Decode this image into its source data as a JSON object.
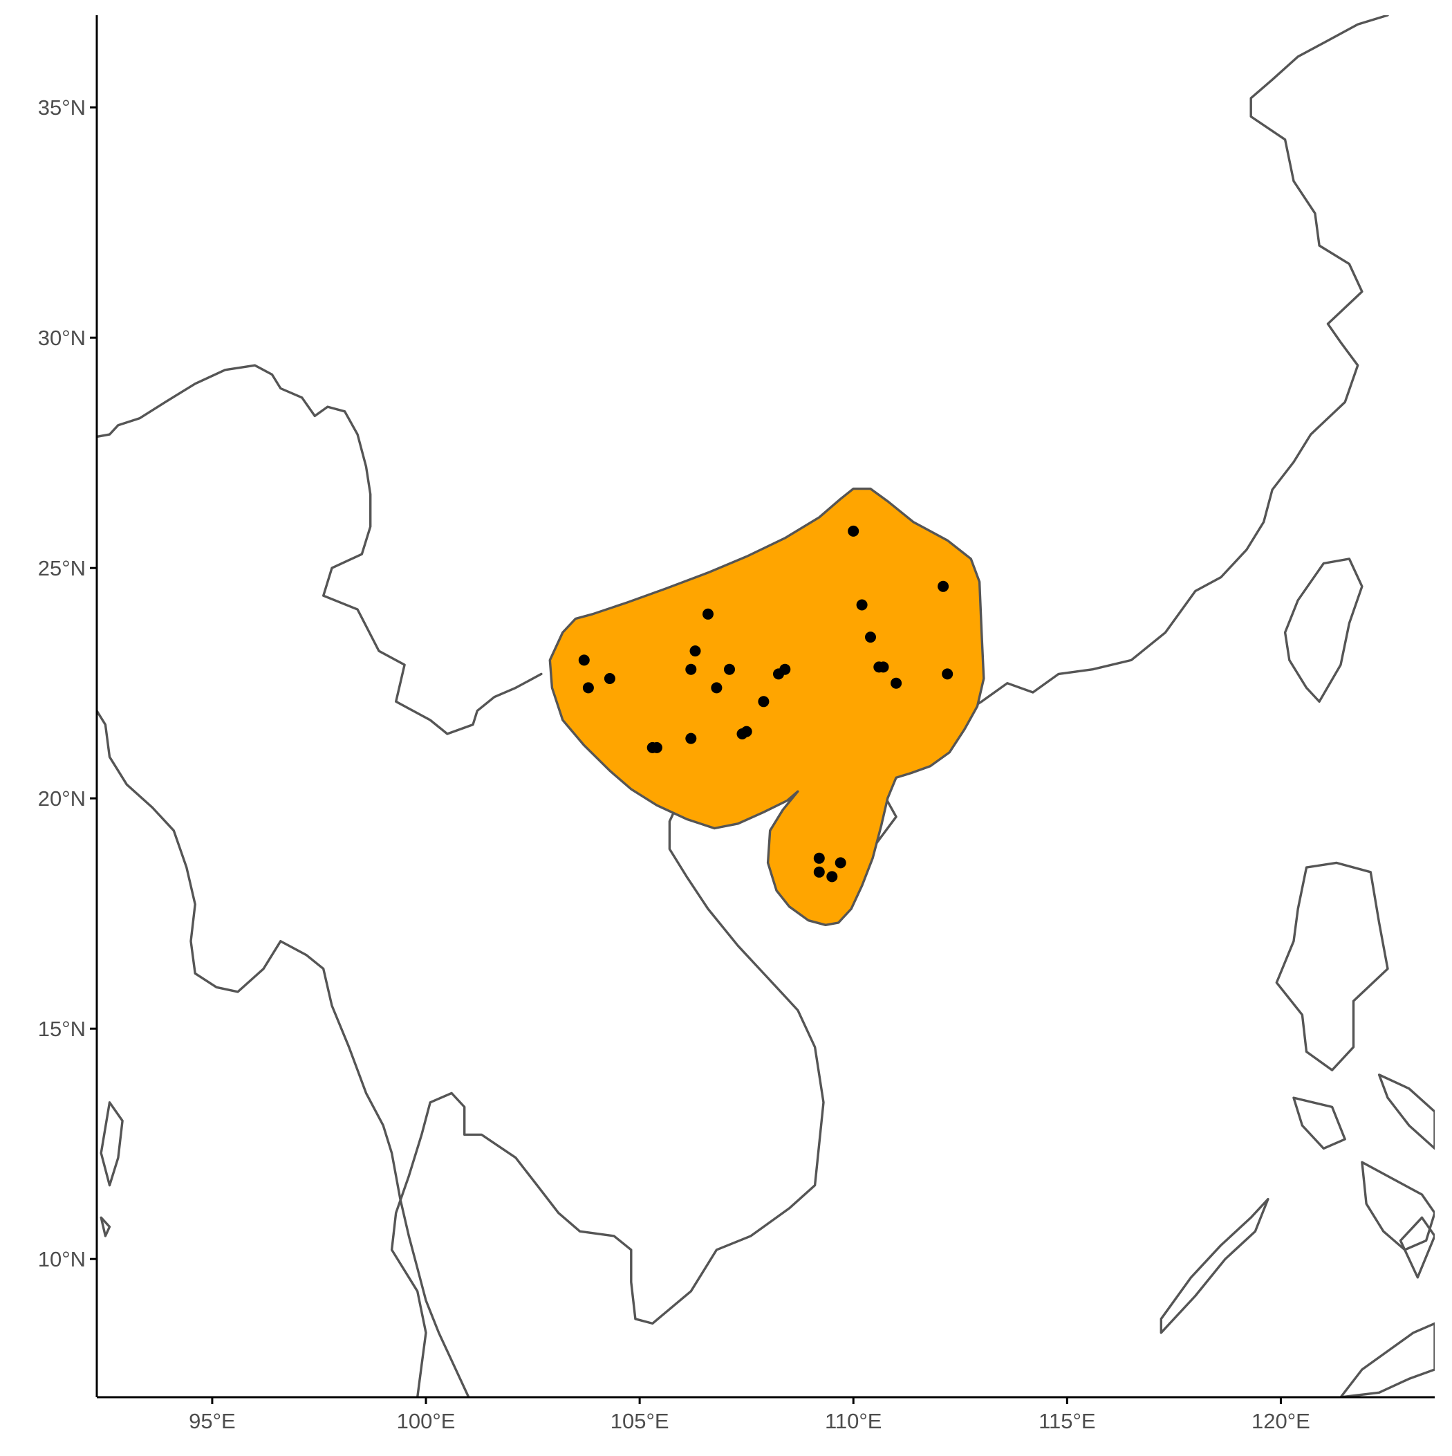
{
  "map": {
    "projection": "equirectangular",
    "lon_range": [
      92.3,
      123.6
    ],
    "lat_range": [
      7.0,
      37.0
    ],
    "x_ticks": [
      {
        "value": 95,
        "label": "95°E"
      },
      {
        "value": 100,
        "label": "100°E"
      },
      {
        "value": 105,
        "label": "105°E"
      },
      {
        "value": 110,
        "label": "110°E"
      },
      {
        "value": 115,
        "label": "115°E"
      },
      {
        "value": 120,
        "label": "120°E"
      }
    ],
    "y_ticks": [
      {
        "value": 10,
        "label": "10°N"
      },
      {
        "value": 15,
        "label": "15°N"
      },
      {
        "value": 20,
        "label": "20°N"
      },
      {
        "value": 25,
        "label": "25°N"
      },
      {
        "value": 30,
        "label": "30°N"
      },
      {
        "value": 35,
        "label": "35°N"
      }
    ],
    "colors": {
      "range_fill": "#FFA500",
      "range_stroke": "#555555",
      "coastline": "#555555",
      "points": "#000000",
      "axis": "#000000",
      "tick_label": "#4d4d4d"
    },
    "range_polygon": [
      [
        103.9,
        24.0
      ],
      [
        104.7,
        24.25
      ],
      [
        105.6,
        24.55
      ],
      [
        106.6,
        24.9
      ],
      [
        107.5,
        25.25
      ],
      [
        108.4,
        25.65
      ],
      [
        109.2,
        26.1
      ],
      [
        109.7,
        26.5
      ],
      [
        110.0,
        26.72
      ],
      [
        110.4,
        26.72
      ],
      [
        110.8,
        26.45
      ],
      [
        111.4,
        26.0
      ],
      [
        112.2,
        25.6
      ],
      [
        112.75,
        25.2
      ],
      [
        112.95,
        24.7
      ],
      [
        113.0,
        23.6
      ],
      [
        113.05,
        22.6
      ],
      [
        112.9,
        22.0
      ],
      [
        112.6,
        21.5
      ],
      [
        112.25,
        21.0
      ],
      [
        111.8,
        20.7
      ],
      [
        111.35,
        20.55
      ],
      [
        111.0,
        20.45
      ],
      [
        110.8,
        20.0
      ],
      [
        110.65,
        19.4
      ],
      [
        110.45,
        18.7
      ],
      [
        110.2,
        18.1
      ],
      [
        109.95,
        17.6
      ],
      [
        109.65,
        17.3
      ],
      [
        109.35,
        17.25
      ],
      [
        108.95,
        17.35
      ],
      [
        108.5,
        17.65
      ],
      [
        108.2,
        18.0
      ],
      [
        108.0,
        18.6
      ],
      [
        108.05,
        19.3
      ],
      [
        108.35,
        19.75
      ],
      [
        108.7,
        20.15
      ],
      [
        108.45,
        19.95
      ],
      [
        107.9,
        19.7
      ],
      [
        107.3,
        19.45
      ],
      [
        106.75,
        19.35
      ],
      [
        106.1,
        19.55
      ],
      [
        105.4,
        19.85
      ],
      [
        104.8,
        20.2
      ],
      [
        104.3,
        20.6
      ],
      [
        103.7,
        21.15
      ],
      [
        103.2,
        21.7
      ],
      [
        102.95,
        22.4
      ],
      [
        102.9,
        23.0
      ],
      [
        103.2,
        23.6
      ],
      [
        103.5,
        23.9
      ]
    ],
    "occurrence_points": [
      [
        110.0,
        25.8
      ],
      [
        112.1,
        24.6
      ],
      [
        110.2,
        24.2
      ],
      [
        106.6,
        24.0
      ],
      [
        110.4,
        23.5
      ],
      [
        103.7,
        23.0
      ],
      [
        106.3,
        23.2
      ],
      [
        107.1,
        22.8
      ],
      [
        106.2,
        22.8
      ],
      [
        108.4,
        22.8
      ],
      [
        108.25,
        22.7
      ],
      [
        110.6,
        22.85
      ],
      [
        110.7,
        22.85
      ],
      [
        112.2,
        22.7
      ],
      [
        104.3,
        22.6
      ],
      [
        103.8,
        22.4
      ],
      [
        106.8,
        22.4
      ],
      [
        111.0,
        22.5
      ],
      [
        107.9,
        22.1
      ],
      [
        107.4,
        21.4
      ],
      [
        107.5,
        21.45
      ],
      [
        106.2,
        21.3
      ],
      [
        105.3,
        21.1
      ],
      [
        105.4,
        21.1
      ],
      [
        109.2,
        18.7
      ],
      [
        109.7,
        18.6
      ],
      [
        109.2,
        18.4
      ],
      [
        109.5,
        18.3
      ]
    ],
    "coastlines": [
      [
        [
          92.3,
          27.85
        ],
        [
          92.6,
          27.9
        ],
        [
          92.8,
          28.1
        ],
        [
          93.3,
          28.25
        ],
        [
          93.9,
          28.6
        ],
        [
          94.6,
          29.0
        ],
        [
          95.3,
          29.3
        ],
        [
          96.0,
          29.4
        ],
        [
          96.4,
          29.2
        ],
        [
          96.6,
          28.9
        ],
        [
          97.1,
          28.7
        ],
        [
          97.4,
          28.3
        ],
        [
          97.7,
          28.5
        ],
        [
          98.1,
          28.4
        ],
        [
          98.4,
          27.9
        ],
        [
          98.6,
          27.2
        ],
        [
          98.7,
          26.6
        ],
        [
          98.7,
          25.9
        ],
        [
          98.5,
          25.3
        ],
        [
          97.8,
          25.0
        ],
        [
          97.6,
          24.4
        ],
        [
          98.4,
          24.1
        ],
        [
          98.9,
          23.2
        ],
        [
          99.5,
          22.9
        ],
        [
          99.3,
          22.1
        ],
        [
          100.1,
          21.7
        ],
        [
          100.5,
          21.4
        ],
        [
          101.1,
          21.6
        ],
        [
          101.2,
          21.9
        ],
        [
          101.6,
          22.2
        ],
        [
          102.1,
          22.4
        ],
        [
          102.7,
          22.7
        ]
      ],
      [
        [
          92.3,
          21.9
        ],
        [
          92.5,
          21.6
        ],
        [
          92.6,
          20.9
        ],
        [
          93.0,
          20.3
        ],
        [
          93.6,
          19.8
        ],
        [
          94.1,
          19.3
        ],
        [
          94.4,
          18.5
        ],
        [
          94.6,
          17.7
        ],
        [
          94.5,
          16.9
        ],
        [
          94.6,
          16.2
        ],
        [
          95.1,
          15.9
        ],
        [
          95.6,
          15.8
        ],
        [
          96.2,
          16.3
        ],
        [
          96.6,
          16.9
        ],
        [
          97.2,
          16.6
        ],
        [
          97.6,
          16.3
        ],
        [
          97.8,
          15.5
        ],
        [
          98.2,
          14.6
        ],
        [
          98.6,
          13.6
        ],
        [
          99.0,
          12.9
        ],
        [
          99.2,
          12.3
        ],
        [
          99.4,
          11.3
        ],
        [
          99.6,
          10.5
        ],
        [
          99.8,
          9.8
        ],
        [
          100.0,
          9.1
        ],
        [
          100.3,
          8.4
        ],
        [
          100.6,
          7.8
        ],
        [
          101.0,
          7.0
        ]
      ],
      [
        [
          99.8,
          7.0
        ],
        [
          99.9,
          7.7
        ],
        [
          100.0,
          8.4
        ],
        [
          99.8,
          9.3
        ],
        [
          99.2,
          10.2
        ],
        [
          99.3,
          11.0
        ],
        [
          99.6,
          11.8
        ],
        [
          99.9,
          12.7
        ],
        [
          100.1,
          13.4
        ],
        [
          100.6,
          13.6
        ],
        [
          100.9,
          13.3
        ],
        [
          100.9,
          12.7
        ],
        [
          101.3,
          12.7
        ],
        [
          102.1,
          12.2
        ],
        [
          102.6,
          11.6
        ],
        [
          103.1,
          11.0
        ],
        [
          103.6,
          10.6
        ],
        [
          104.4,
          10.5
        ],
        [
          104.8,
          10.2
        ],
        [
          104.8,
          9.5
        ],
        [
          104.9,
          8.7
        ],
        [
          105.3,
          8.6
        ],
        [
          106.2,
          9.3
        ],
        [
          106.8,
          10.2
        ],
        [
          107.6,
          10.5
        ],
        [
          108.5,
          11.1
        ],
        [
          109.1,
          11.6
        ],
        [
          109.2,
          12.5
        ],
        [
          109.3,
          13.4
        ],
        [
          109.1,
          14.6
        ],
        [
          108.7,
          15.4
        ],
        [
          108.0,
          16.1
        ],
        [
          107.3,
          16.8
        ],
        [
          106.6,
          17.6
        ],
        [
          106.1,
          18.3
        ],
        [
          105.7,
          18.9
        ],
        [
          105.7,
          19.5
        ],
        [
          106.0,
          20.1
        ],
        [
          106.6,
          20.7
        ],
        [
          107.2,
          21.1
        ],
        [
          107.8,
          21.5
        ],
        [
          108.3,
          21.6
        ],
        [
          108.7,
          21.7
        ],
        [
          109.1,
          21.5
        ],
        [
          109.6,
          21.5
        ],
        [
          110.1,
          21.3
        ],
        [
          110.4,
          20.8
        ],
        [
          110.3,
          20.3
        ]
      ],
      [
        [
          110.3,
          20.3
        ],
        [
          110.7,
          20.1
        ],
        [
          111.0,
          19.6
        ],
        [
          110.6,
          19.1
        ],
        [
          110.2,
          18.6
        ],
        [
          109.6,
          18.2
        ],
        [
          108.9,
          18.4
        ],
        [
          108.6,
          18.8
        ],
        [
          108.7,
          19.4
        ],
        [
          109.2,
          19.8
        ],
        [
          109.7,
          20.0
        ],
        [
          110.3,
          20.3
        ]
      ],
      [
        [
          110.4,
          20.8
        ],
        [
          110.8,
          21.2
        ],
        [
          111.5,
          21.5
        ],
        [
          112.3,
          21.7
        ],
        [
          113.0,
          22.1
        ],
        [
          113.6,
          22.5
        ],
        [
          114.2,
          22.3
        ],
        [
          114.8,
          22.7
        ],
        [
          115.6,
          22.8
        ],
        [
          116.5,
          23.0
        ],
        [
          117.3,
          23.6
        ],
        [
          118.0,
          24.5
        ],
        [
          118.6,
          24.8
        ],
        [
          119.2,
          25.4
        ],
        [
          119.6,
          26.0
        ],
        [
          119.8,
          26.7
        ],
        [
          120.3,
          27.3
        ],
        [
          120.7,
          27.9
        ],
        [
          121.5,
          28.6
        ],
        [
          121.8,
          29.4
        ],
        [
          121.4,
          29.9
        ],
        [
          121.1,
          30.3
        ],
        [
          121.9,
          31.0
        ],
        [
          121.6,
          31.6
        ],
        [
          120.9,
          32.0
        ],
        [
          120.8,
          32.7
        ],
        [
          120.3,
          33.4
        ],
        [
          120.1,
          34.3
        ],
        [
          119.3,
          34.8
        ],
        [
          119.3,
          35.2
        ],
        [
          119.8,
          35.6
        ],
        [
          120.4,
          36.1
        ],
        [
          121.0,
          36.4
        ],
        [
          121.8,
          36.8
        ],
        [
          122.5,
          37.0
        ]
      ],
      [
        [
          121.0,
          25.1
        ],
        [
          121.6,
          25.2
        ],
        [
          121.9,
          24.6
        ],
        [
          121.6,
          23.8
        ],
        [
          121.4,
          22.9
        ],
        [
          120.9,
          22.1
        ],
        [
          120.6,
          22.4
        ],
        [
          120.2,
          23.0
        ],
        [
          120.1,
          23.6
        ],
        [
          120.4,
          24.3
        ],
        [
          121.0,
          25.1
        ]
      ],
      [
        [
          120.6,
          18.5
        ],
        [
          121.3,
          18.6
        ],
        [
          122.1,
          18.4
        ],
        [
          122.3,
          17.3
        ],
        [
          122.5,
          16.3
        ],
        [
          121.7,
          15.6
        ],
        [
          121.7,
          14.6
        ],
        [
          121.2,
          14.1
        ],
        [
          120.6,
          14.5
        ],
        [
          120.5,
          15.3
        ],
        [
          119.9,
          16.0
        ],
        [
          120.3,
          16.9
        ],
        [
          120.4,
          17.6
        ],
        [
          120.6,
          18.5
        ]
      ],
      [
        [
          122.3,
          14.0
        ],
        [
          123.0,
          13.7
        ],
        [
          123.6,
          13.2
        ],
        [
          123.6,
          12.4
        ],
        [
          123.0,
          12.9
        ],
        [
          122.5,
          13.5
        ],
        [
          122.3,
          14.0
        ]
      ],
      [
        [
          117.2,
          8.4
        ],
        [
          118.0,
          9.2
        ],
        [
          118.7,
          10.0
        ],
        [
          119.4,
          10.6
        ],
        [
          119.7,
          11.3
        ],
        [
          119.3,
          10.9
        ],
        [
          118.6,
          10.3
        ],
        [
          117.9,
          9.6
        ],
        [
          117.2,
          8.7
        ],
        [
          117.2,
          8.4
        ]
      ],
      [
        [
          121.9,
          12.1
        ],
        [
          122.7,
          11.7
        ],
        [
          123.3,
          11.4
        ],
        [
          123.6,
          11.0
        ],
        [
          123.4,
          10.4
        ],
        [
          122.9,
          10.2
        ],
        [
          122.4,
          10.6
        ],
        [
          122.0,
          11.2
        ],
        [
          121.9,
          12.1
        ]
      ],
      [
        [
          120.3,
          13.5
        ],
        [
          121.2,
          13.3
        ],
        [
          121.5,
          12.6
        ],
        [
          121.0,
          12.4
        ],
        [
          120.5,
          12.9
        ],
        [
          120.3,
          13.5
        ]
      ],
      [
        [
          122.8,
          10.4
        ],
        [
          123.3,
          10.9
        ],
        [
          123.6,
          10.5
        ],
        [
          123.2,
          9.6
        ],
        [
          122.8,
          10.4
        ]
      ],
      [
        [
          121.4,
          7.0
        ],
        [
          121.9,
          7.6
        ],
        [
          122.5,
          8.0
        ],
        [
          123.1,
          8.4
        ],
        [
          123.6,
          8.6
        ],
        [
          123.6,
          7.6
        ],
        [
          123.0,
          7.4
        ],
        [
          122.3,
          7.1
        ],
        [
          121.4,
          7.0
        ]
      ],
      [
        [
          92.6,
          13.4
        ],
        [
          92.9,
          13.0
        ],
        [
          92.8,
          12.2
        ],
        [
          92.6,
          11.6
        ],
        [
          92.4,
          12.3
        ],
        [
          92.6,
          13.4
        ]
      ],
      [
        [
          92.4,
          10.9
        ],
        [
          92.6,
          10.7
        ],
        [
          92.5,
          10.5
        ],
        [
          92.4,
          10.9
        ]
      ]
    ]
  }
}
